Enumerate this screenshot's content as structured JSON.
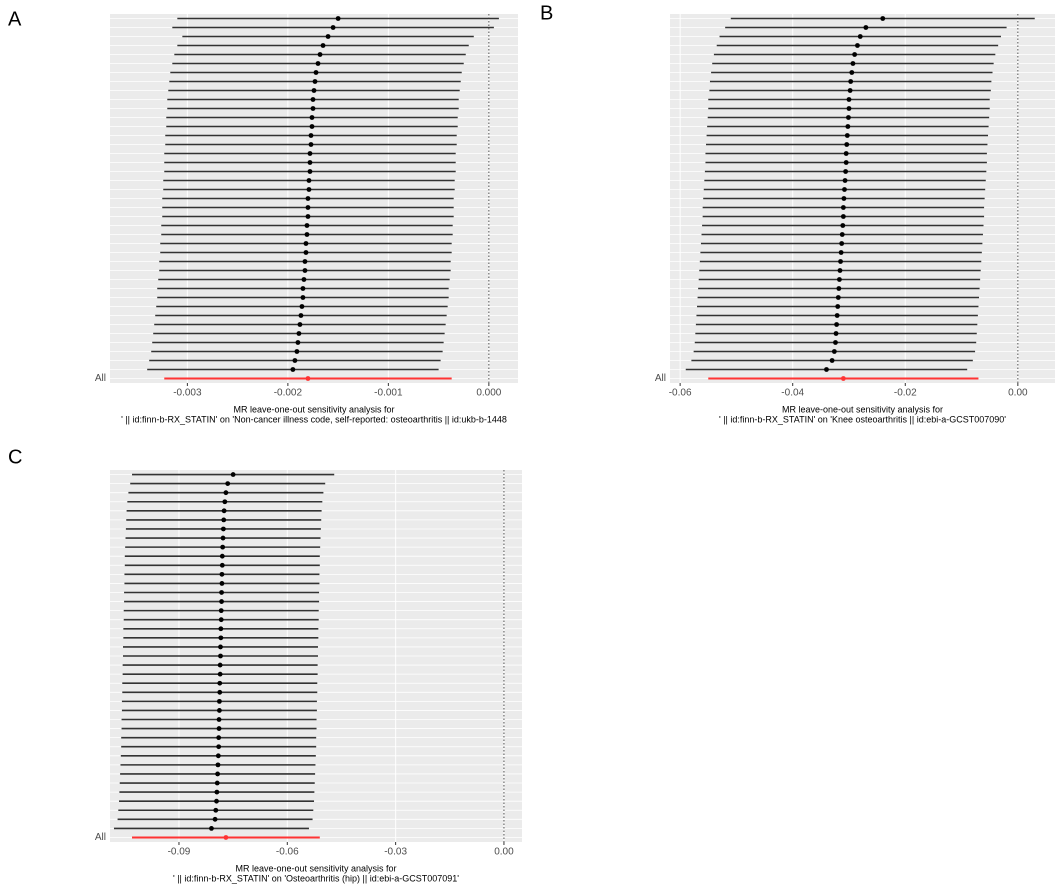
{
  "chart_data": [
    {
      "type": "errorbar",
      "panel_label": "A",
      "xlabel": [
        "MR leave-one-out sensitivity analysis for",
        "' || id:finn-b-RX_STATIN' on 'Non-cancer illness code, self-reported: osteoarthritis || id:ukb-b-1448"
      ],
      "color": "#000000",
      "xlim": [
        -0.00377,
        0.00029
      ],
      "xticks": [
        -0.003,
        -0.002,
        -0.001,
        {
          "value": 0,
          "label": "0.000"
        }
      ],
      "vline": 0,
      "categories": [
        null,
        null,
        null,
        null,
        null,
        null,
        null,
        null,
        null,
        null,
        null,
        null,
        null,
        null,
        null,
        null,
        null,
        null,
        null,
        null,
        null,
        null,
        null,
        null,
        null,
        null,
        null,
        null,
        null,
        null,
        null,
        null,
        null,
        null,
        null,
        null,
        null,
        null,
        null,
        null
      ],
      "values": [
        -0.0015,
        -0.00155,
        -0.0016,
        -0.00165,
        -0.00168,
        -0.0017,
        -0.00172,
        -0.00173,
        -0.00174,
        -0.00175,
        -0.00175,
        -0.00176,
        -0.00176,
        -0.00177,
        -0.00177,
        -0.00178,
        -0.00178,
        -0.00178,
        -0.00179,
        -0.00179,
        -0.0018,
        -0.0018,
        -0.0018,
        -0.00181,
        -0.00181,
        -0.00182,
        -0.00182,
        -0.00183,
        -0.00183,
        -0.00184,
        -0.00185,
        -0.00185,
        -0.00186,
        -0.00187,
        -0.00188,
        -0.00189,
        -0.0019,
        -0.00191,
        -0.00193,
        -0.00195
      ],
      "errors": [
        0.0016,
        0.0016,
        0.00145,
        0.00145,
        0.00145,
        0.00145,
        0.00145,
        0.00145,
        0.00145,
        0.00145,
        0.00145,
        0.00145,
        0.00145,
        0.00145,
        0.00145,
        0.00145,
        0.00145,
        0.00145,
        0.00145,
        0.00145,
        0.00145,
        0.00145,
        0.00145,
        0.00145,
        0.00145,
        0.00145,
        0.00145,
        0.00145,
        0.00145,
        0.00145,
        0.00145,
        0.00145,
        0.00145,
        0.00145,
        0.00145,
        0.00145,
        0.00145,
        0.00145,
        0.00145,
        0.00145
      ],
      "overall": {
        "name": "All",
        "value": -0.0018,
        "error": 0.00143,
        "color": "#ff3333"
      }
    },
    {
      "type": "errorbar",
      "panel_label": "B",
      "xlabel": [
        "MR leave-one-out sensitivity analysis for",
        "' || id:finn-b-RX_STATIN' on 'Knee osteoarthritis || id:ebi-a-GCST007090'"
      ],
      "color": "#000000",
      "xlim": [
        -0.0618,
        0.0066
      ],
      "xticks": [
        -0.06,
        -0.04,
        -0.02,
        {
          "value": 0,
          "label": "0.00"
        }
      ],
      "vline": 0,
      "categories": [
        null,
        null,
        null,
        null,
        null,
        null,
        null,
        null,
        null,
        null,
        null,
        null,
        null,
        null,
        null,
        null,
        null,
        null,
        null,
        null,
        null,
        null,
        null,
        null,
        null,
        null,
        null,
        null,
        null,
        null,
        null,
        null,
        null,
        null,
        null,
        null,
        null,
        null,
        null,
        null
      ],
      "values": [
        -0.024,
        -0.027,
        -0.028,
        -0.0285,
        -0.029,
        -0.0293,
        -0.0295,
        -0.0297,
        -0.0298,
        -0.03,
        -0.03,
        -0.0301,
        -0.0302,
        -0.0303,
        -0.0304,
        -0.0305,
        -0.0305,
        -0.0306,
        -0.0307,
        -0.0308,
        -0.0309,
        -0.031,
        -0.031,
        -0.0311,
        -0.0312,
        -0.0313,
        -0.0314,
        -0.0315,
        -0.0316,
        -0.0317,
        -0.0318,
        -0.0319,
        -0.032,
        -0.0321,
        -0.0322,
        -0.0323,
        -0.0324,
        -0.0326,
        -0.033,
        -0.034
      ],
      "errors": [
        0.027,
        0.025,
        0.025,
        0.025,
        0.025,
        0.025,
        0.025,
        0.025,
        0.025,
        0.025,
        0.025,
        0.025,
        0.025,
        0.025,
        0.025,
        0.025,
        0.025,
        0.025,
        0.025,
        0.025,
        0.025,
        0.025,
        0.025,
        0.025,
        0.025,
        0.025,
        0.025,
        0.025,
        0.025,
        0.025,
        0.025,
        0.025,
        0.025,
        0.025,
        0.025,
        0.025,
        0.025,
        0.025,
        0.025,
        0.025
      ],
      "overall": {
        "name": "All",
        "value": -0.031,
        "error": 0.024,
        "color": "#ff3333"
      }
    },
    {
      "type": "errorbar",
      "panel_label": "C",
      "xlabel": [
        "MR leave-one-out sensitivity analysis for",
        "' || id:finn-b-RX_STATIN' on 'Osteoarthritis (hip) || id:ebi-a-GCST007091'"
      ],
      "color": "#000000",
      "xlim": [
        -0.1091,
        0.005
      ],
      "xticks": [
        -0.09,
        -0.06,
        -0.03,
        {
          "value": 0,
          "label": "0.00"
        }
      ],
      "vline": 0,
      "categories": [
        null,
        null,
        null,
        null,
        null,
        null,
        null,
        null,
        null,
        null,
        null,
        null,
        null,
        null,
        null,
        null,
        null,
        null,
        null,
        null,
        null,
        null,
        null,
        null,
        null,
        null,
        null,
        null,
        null,
        null,
        null,
        null,
        null,
        null,
        null,
        null,
        null,
        null,
        null,
        null
      ],
      "values": [
        -0.075,
        -0.0765,
        -0.077,
        -0.0773,
        -0.0775,
        -0.0776,
        -0.0777,
        -0.0778,
        -0.0779,
        -0.078,
        -0.078,
        -0.0781,
        -0.0781,
        -0.0782,
        -0.0782,
        -0.0783,
        -0.0783,
        -0.0784,
        -0.0784,
        -0.0785,
        -0.0785,
        -0.0786,
        -0.0786,
        -0.0787,
        -0.0787,
        -0.0788,
        -0.0788,
        -0.0789,
        -0.0789,
        -0.079,
        -0.079,
        -0.0791,
        -0.0792,
        -0.0793,
        -0.0794,
        -0.0795,
        -0.0796,
        -0.0798,
        -0.08,
        -0.081
      ],
      "errors": [
        0.028,
        0.027,
        0.027,
        0.027,
        0.027,
        0.027,
        0.027,
        0.027,
        0.027,
        0.027,
        0.027,
        0.027,
        0.027,
        0.027,
        0.027,
        0.027,
        0.027,
        0.027,
        0.027,
        0.027,
        0.027,
        0.027,
        0.027,
        0.027,
        0.027,
        0.027,
        0.027,
        0.027,
        0.027,
        0.027,
        0.027,
        0.027,
        0.027,
        0.027,
        0.027,
        0.027,
        0.027,
        0.027,
        0.027,
        0.027
      ],
      "overall": {
        "name": "All",
        "value": -0.077,
        "error": 0.026,
        "color": "#ff3333"
      }
    }
  ]
}
